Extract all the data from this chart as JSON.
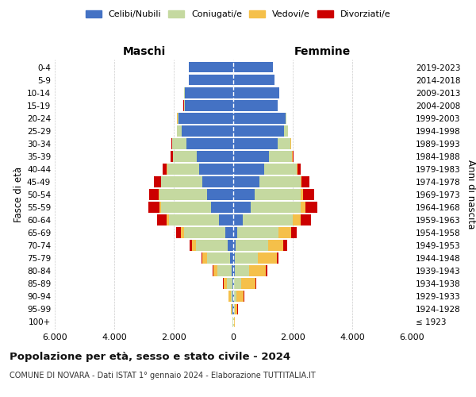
{
  "age_groups": [
    "100+",
    "95-99",
    "90-94",
    "85-89",
    "80-84",
    "75-79",
    "70-74",
    "65-69",
    "60-64",
    "55-59",
    "50-54",
    "45-49",
    "40-44",
    "35-39",
    "30-34",
    "25-29",
    "20-24",
    "15-19",
    "10-14",
    "5-9",
    "0-4"
  ],
  "birth_years": [
    "≤ 1923",
    "1924-1928",
    "1929-1933",
    "1934-1938",
    "1939-1943",
    "1944-1948",
    "1949-1953",
    "1954-1958",
    "1959-1963",
    "1964-1968",
    "1969-1973",
    "1974-1978",
    "1979-1983",
    "1984-1988",
    "1989-1993",
    "1994-1998",
    "1999-2003",
    "2004-2008",
    "2009-2013",
    "2014-2018",
    "2019-2023"
  ],
  "colors": {
    "celibi": "#4472c4",
    "coniugati": "#c5d9a0",
    "vedovi": "#f5c04a",
    "divorziati": "#cc0000"
  },
  "maschi": {
    "celibi": [
      10,
      25,
      30,
      40,
      60,
      100,
      180,
      280,
      490,
      740,
      890,
      1040,
      1140,
      1240,
      1580,
      1740,
      1840,
      1640,
      1640,
      1490,
      1490
    ],
    "coniugati": [
      8,
      25,
      50,
      180,
      480,
      780,
      1080,
      1380,
      1680,
      1680,
      1580,
      1380,
      1080,
      780,
      480,
      150,
      40,
      20,
      8,
      4,
      4
    ],
    "vedovi": [
      3,
      25,
      70,
      110,
      140,
      150,
      120,
      90,
      70,
      50,
      35,
      18,
      8,
      4,
      4,
      4,
      4,
      4,
      4,
      4,
      4
    ],
    "divorziati": [
      0,
      4,
      8,
      12,
      25,
      45,
      90,
      180,
      330,
      380,
      330,
      220,
      140,
      70,
      25,
      8,
      4,
      4,
      4,
      4,
      4
    ]
  },
  "femmine": {
    "celibi": [
      8,
      15,
      20,
      30,
      40,
      50,
      80,
      140,
      320,
      580,
      730,
      880,
      1050,
      1200,
      1500,
      1700,
      1750,
      1480,
      1540,
      1380,
      1330
    ],
    "coniugati": [
      8,
      40,
      90,
      230,
      480,
      780,
      1080,
      1380,
      1680,
      1680,
      1530,
      1380,
      1080,
      780,
      430,
      130,
      40,
      15,
      8,
      4,
      4
    ],
    "vedovi": [
      25,
      90,
      240,
      480,
      580,
      630,
      530,
      430,
      260,
      160,
      90,
      40,
      18,
      8,
      4,
      4,
      4,
      4,
      4,
      4,
      4
    ],
    "divorziati": [
      0,
      8,
      15,
      20,
      45,
      70,
      110,
      180,
      360,
      410,
      360,
      250,
      120,
      50,
      15,
      4,
      4,
      4,
      4,
      4,
      4
    ]
  },
  "title": "Popolazione per età, sesso e stato civile - 2024",
  "subtitle": "COMUNE DI NOVARA - Dati ISTAT 1° gennaio 2024 - Elaborazione TUTTITALIA.IT",
  "maschi_label": "Maschi",
  "femmine_label": "Femmine",
  "ylabel_left": "Fasce di età",
  "ylabel_right": "Anni di nascita",
  "xlim": 6000,
  "legend_labels": [
    "Celibi/Nubili",
    "Coniugati/e",
    "Vedovi/e",
    "Divorziati/e"
  ],
  "bg_color": "#ffffff",
  "grid_color": "#cccccc"
}
